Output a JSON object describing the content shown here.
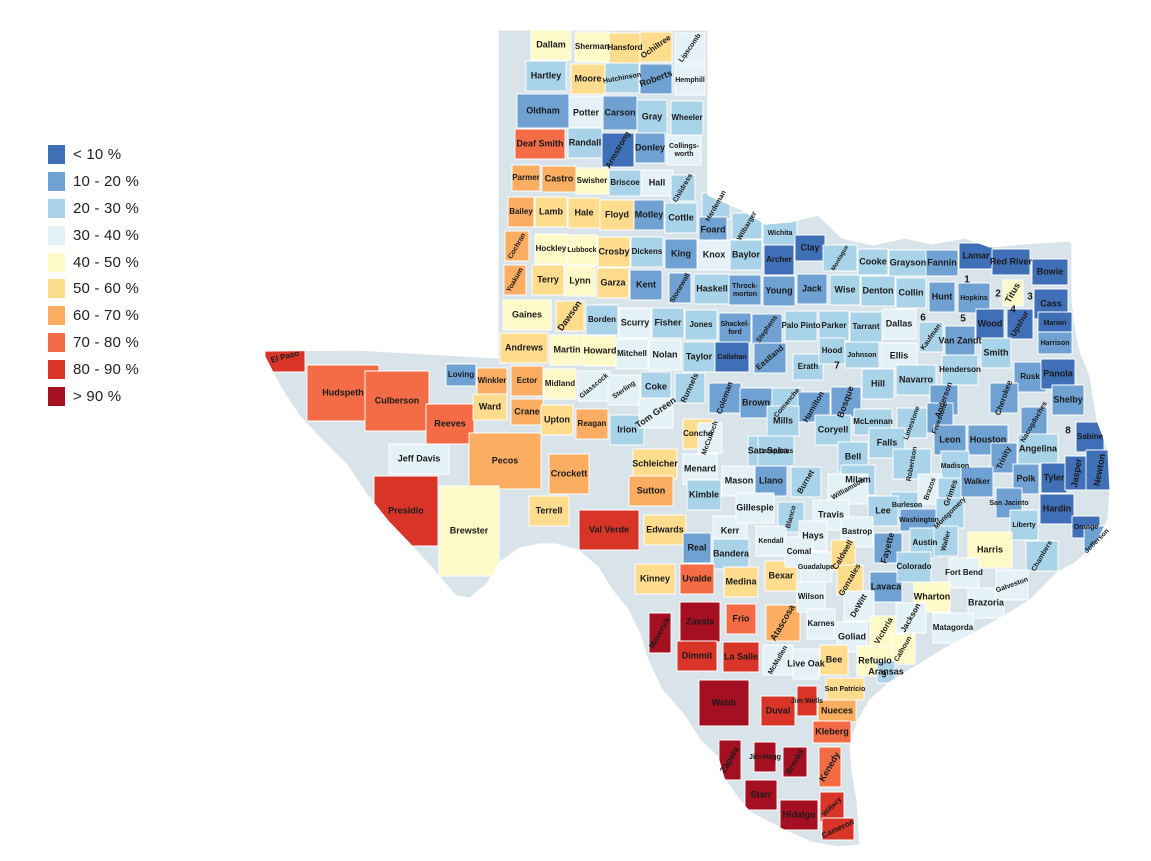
{
  "legend": {
    "items": [
      {
        "label": "< 10 %",
        "color": "#3f6fb6"
      },
      {
        "label": "10 - 20 %",
        "color": "#6fa2d3"
      },
      {
        "label": "20 - 30 %",
        "color": "#a9d3e8"
      },
      {
        "label": "30 - 40 %",
        "color": "#e4f2f7"
      },
      {
        "label": "40 - 50 %",
        "color": "#fdfac7"
      },
      {
        "label": "50 - 60 %",
        "color": "#fddc8d"
      },
      {
        "label": "60 - 70 %",
        "color": "#fbad61"
      },
      {
        "label": "70 - 80 %",
        "color": "#f36c45"
      },
      {
        "label": "80 - 90 %",
        "color": "#d83428"
      },
      {
        "label": "> 90 %",
        "color": "#a50f22"
      }
    ]
  },
  "counties": [
    {
      "name": "Dallam",
      "cls": 4
    },
    {
      "name": "Sherman",
      "cls": 4
    },
    {
      "name": "Hansford",
      "cls": 5
    },
    {
      "name": "Ochiltree",
      "cls": 5
    },
    {
      "name": "Lipscomb",
      "cls": 3
    },
    {
      "name": "Hartley",
      "cls": 2
    },
    {
      "name": "Moore",
      "cls": 5
    },
    {
      "name": "Hutchinson",
      "cls": 2
    },
    {
      "name": "Roberts",
      "cls": 1
    },
    {
      "name": "Hemphill",
      "cls": 3
    },
    {
      "name": "Oldham",
      "cls": 1
    },
    {
      "name": "Potter",
      "cls": 3
    },
    {
      "name": "Carson",
      "cls": 1
    },
    {
      "name": "Gray",
      "cls": 2
    },
    {
      "name": "Wheeler",
      "cls": 2
    },
    {
      "name": "Deaf Smith",
      "cls": 7
    },
    {
      "name": "Randall",
      "cls": 2
    },
    {
      "name": "Armstrong",
      "cls": 0
    },
    {
      "name": "Donley",
      "cls": 1
    },
    {
      "name": "Collings-worth",
      "cls": 3
    },
    {
      "name": "Parmer",
      "cls": 6
    },
    {
      "name": "Castro",
      "cls": 6
    },
    {
      "name": "Swisher",
      "cls": 4
    },
    {
      "name": "Briscoe",
      "cls": 2
    },
    {
      "name": "Hall",
      "cls": 3
    },
    {
      "name": "Childress",
      "cls": 2
    },
    {
      "name": "Bailey",
      "cls": 6
    },
    {
      "name": "Lamb",
      "cls": 5
    },
    {
      "name": "Hale",
      "cls": 5
    },
    {
      "name": "Floyd",
      "cls": 5
    },
    {
      "name": "Motley",
      "cls": 1
    },
    {
      "name": "Cottle",
      "cls": 2
    },
    {
      "name": "Hardeman",
      "cls": 2
    },
    {
      "name": "Foard",
      "cls": 1
    },
    {
      "name": "Wilbarger",
      "cls": 2
    },
    {
      "name": "Wichita",
      "cls": 2
    },
    {
      "name": "Clay",
      "cls": 0
    },
    {
      "name": "Montague",
      "cls": 2
    },
    {
      "name": "Cochran",
      "cls": 6
    },
    {
      "name": "Hockley",
      "cls": 4
    },
    {
      "name": "Lubbock",
      "cls": 4
    },
    {
      "name": "Crosby",
      "cls": 5
    },
    {
      "name": "Dickens",
      "cls": 2
    },
    {
      "name": "King",
      "cls": 1
    },
    {
      "name": "Knox",
      "cls": 3
    },
    {
      "name": "Baylor",
      "cls": 2
    },
    {
      "name": "Archer",
      "cls": 0
    },
    {
      "name": "Cooke",
      "cls": 2
    },
    {
      "name": "Grayson",
      "cls": 2
    },
    {
      "name": "Fannin",
      "cls": 1
    },
    {
      "name": "Lamar",
      "cls": 0
    },
    {
      "name": "Red River",
      "cls": 0
    },
    {
      "name": "Bowie",
      "cls": 0
    },
    {
      "name": "Yoakum",
      "cls": 6
    },
    {
      "name": "Terry",
      "cls": 5
    },
    {
      "name": "Lynn",
      "cls": 4
    },
    {
      "name": "Garza",
      "cls": 5
    },
    {
      "name": "Kent",
      "cls": 1
    },
    {
      "name": "Stonewall",
      "cls": 1
    },
    {
      "name": "Haskell",
      "cls": 2
    },
    {
      "name": "Throck-morton",
      "cls": 1
    },
    {
      "name": "Young",
      "cls": 1
    },
    {
      "name": "Jack",
      "cls": 1
    },
    {
      "name": "Wise",
      "cls": 2
    },
    {
      "name": "Denton",
      "cls": 2
    },
    {
      "name": "Collin",
      "cls": 2
    },
    {
      "name": "Hunt",
      "cls": 1
    },
    {
      "name": "Hopkins",
      "cls": 1
    },
    {
      "name": "Titus",
      "cls": 4
    },
    {
      "name": "Cass",
      "cls": 0
    },
    {
      "name": "Gaines",
      "cls": 4
    },
    {
      "name": "Dawson",
      "cls": 5
    },
    {
      "name": "Borden",
      "cls": 2
    },
    {
      "name": "Scurry",
      "cls": 3
    },
    {
      "name": "Fisher",
      "cls": 2
    },
    {
      "name": "Jones",
      "cls": 2
    },
    {
      "name": "Shackel-ford",
      "cls": 1
    },
    {
      "name": "Stephens",
      "cls": 1
    },
    {
      "name": "Palo Pinto",
      "cls": 2
    },
    {
      "name": "Parker",
      "cls": 2
    },
    {
      "name": "Tarrant",
      "cls": 2
    },
    {
      "name": "Dallas",
      "cls": 3
    },
    {
      "name": "Kaufman",
      "cls": 2
    },
    {
      "name": "Van Zandt",
      "cls": 1
    },
    {
      "name": "Wood",
      "cls": 0
    },
    {
      "name": "Upshur",
      "cls": 0
    },
    {
      "name": "Marion",
      "cls": 0
    },
    {
      "name": "Harrison",
      "cls": 1
    },
    {
      "name": "Andrews",
      "cls": 5
    },
    {
      "name": "Martin",
      "cls": 4
    },
    {
      "name": "Howard",
      "cls": 4
    },
    {
      "name": "Mitchell",
      "cls": 3
    },
    {
      "name": "Nolan",
      "cls": 3
    },
    {
      "name": "Taylor",
      "cls": 2
    },
    {
      "name": "Callahan",
      "cls": 0
    },
    {
      "name": "Eastland",
      "cls": 1
    },
    {
      "name": "Erath",
      "cls": 2
    },
    {
      "name": "Hood",
      "cls": 2
    },
    {
      "name": "Johnson",
      "cls": 2
    },
    {
      "name": "Ellis",
      "cls": 3
    },
    {
      "name": "Henderson",
      "cls": 2
    },
    {
      "name": "Smith",
      "cls": 2
    },
    {
      "name": "Rusk",
      "cls": 1
    },
    {
      "name": "Panola",
      "cls": 0
    },
    {
      "name": "El Paso",
      "cls": 8
    },
    {
      "name": "Hudspeth",
      "cls": 7
    },
    {
      "name": "Culberson",
      "cls": 7
    },
    {
      "name": "Loving",
      "cls": 1
    },
    {
      "name": "Winkler",
      "cls": 6
    },
    {
      "name": "Ector",
      "cls": 6
    },
    {
      "name": "Midland",
      "cls": 4
    },
    {
      "name": "Glasscock",
      "cls": 3
    },
    {
      "name": "Sterling",
      "cls": 3
    },
    {
      "name": "Coke",
      "cls": 2
    },
    {
      "name": "Runnels",
      "cls": 2
    },
    {
      "name": "Coleman",
      "cls": 1
    },
    {
      "name": "Brown",
      "cls": 1
    },
    {
      "name": "Comanche",
      "cls": 2
    },
    {
      "name": "Hamilton",
      "cls": 1
    },
    {
      "name": "Bosque",
      "cls": 1
    },
    {
      "name": "Hill",
      "cls": 2
    },
    {
      "name": "Navarro",
      "cls": 2
    },
    {
      "name": "Anderson",
      "cls": 1
    },
    {
      "name": "Cherokee",
      "cls": 1
    },
    {
      "name": "Nacogdoches",
      "cls": 1
    },
    {
      "name": "Shelby",
      "cls": 1
    },
    {
      "name": "Reeves",
      "cls": 7
    },
    {
      "name": "Ward",
      "cls": 5
    },
    {
      "name": "Crane",
      "cls": 6
    },
    {
      "name": "Upton",
      "cls": 5
    },
    {
      "name": "Reagan",
      "cls": 6
    },
    {
      "name": "Irion",
      "cls": 2
    },
    {
      "name": "Tom Green",
      "cls": 3
    },
    {
      "name": "Concho",
      "cls": 5
    },
    {
      "name": "McCulloch",
      "cls": 3
    },
    {
      "name": "Mills",
      "cls": 2
    },
    {
      "name": "Coryell",
      "cls": 2
    },
    {
      "name": "McLennan",
      "cls": 2
    },
    {
      "name": "Limestone",
      "cls": 2
    },
    {
      "name": "Freestone",
      "cls": 1
    },
    {
      "name": "Falls",
      "cls": 2
    },
    {
      "name": "Leon",
      "cls": 1
    },
    {
      "name": "Houston",
      "cls": 1
    },
    {
      "name": "Angelina",
      "cls": 2
    },
    {
      "name": "Sabine",
      "cls": 0
    },
    {
      "name": "Jeff Davis",
      "cls": 3
    },
    {
      "name": "Pecos",
      "cls": 6
    },
    {
      "name": "Crockett",
      "cls": 6
    },
    {
      "name": "Schleicher",
      "cls": 5
    },
    {
      "name": "Menard",
      "cls": 3
    },
    {
      "name": "San Saba",
      "cls": 2
    },
    {
      "name": "Lampasas",
      "cls": 2
    },
    {
      "name": "Bell",
      "cls": 2
    },
    {
      "name": "Robertson",
      "cls": 2
    },
    {
      "name": "Madison",
      "cls": 2
    },
    {
      "name": "Trinity",
      "cls": 1
    },
    {
      "name": "Polk",
      "cls": 1
    },
    {
      "name": "Tyler",
      "cls": 0
    },
    {
      "name": "Jasper",
      "cls": 0
    },
    {
      "name": "Newton",
      "cls": 0
    },
    {
      "name": "Sutton",
      "cls": 6
    },
    {
      "name": "Kimble",
      "cls": 2
    },
    {
      "name": "Mason",
      "cls": 3
    },
    {
      "name": "Llano",
      "cls": 1
    },
    {
      "name": "Burnet",
      "cls": 2
    },
    {
      "name": "Milam",
      "cls": 2
    },
    {
      "name": "Williamson",
      "cls": 3
    },
    {
      "name": "Burleson",
      "cls": 2
    },
    {
      "name": "Brazos",
      "cls": 3
    },
    {
      "name": "Grimes",
      "cls": 2
    },
    {
      "name": "Walker",
      "cls": 1
    },
    {
      "name": "San Jacinto",
      "cls": 1
    },
    {
      "name": "Hardin",
      "cls": 0
    },
    {
      "name": "Orange",
      "cls": 0
    },
    {
      "name": "Presidio",
      "cls": 8
    },
    {
      "name": "Brewster",
      "cls": 4
    },
    {
      "name": "Terrell",
      "cls": 5
    },
    {
      "name": "Val Verde",
      "cls": 8
    },
    {
      "name": "Edwards",
      "cls": 5
    },
    {
      "name": "Kerr",
      "cls": 3
    },
    {
      "name": "Gillespie",
      "cls": 3
    },
    {
      "name": "Blanco",
      "cls": 2
    },
    {
      "name": "Travis",
      "cls": 3
    },
    {
      "name": "Lee",
      "cls": 2
    },
    {
      "name": "Washington",
      "cls": 1
    },
    {
      "name": "Montgomery",
      "cls": 2
    },
    {
      "name": "Liberty",
      "cls": 2
    },
    {
      "name": "Jefferson",
      "cls": 1
    },
    {
      "name": "Real",
      "cls": 1
    },
    {
      "name": "Bandera",
      "cls": 2
    },
    {
      "name": "Kendall",
      "cls": 3
    },
    {
      "name": "Hays",
      "cls": 3
    },
    {
      "name": "Bastrop",
      "cls": 3
    },
    {
      "name": "Fayette",
      "cls": 1
    },
    {
      "name": "Austin",
      "cls": 2
    },
    {
      "name": "Waller",
      "cls": 2
    },
    {
      "name": "Harris",
      "cls": 4
    },
    {
      "name": "Chambers",
      "cls": 2
    },
    {
      "name": "Kinney",
      "cls": 5
    },
    {
      "name": "Uvalde",
      "cls": 7
    },
    {
      "name": "Medina",
      "cls": 5
    },
    {
      "name": "Bexar",
      "cls": 5
    },
    {
      "name": "Comal",
      "cls": 3
    },
    {
      "name": "Guadalupe",
      "cls": 3
    },
    {
      "name": "Caldwell",
      "cls": 5
    },
    {
      "name": "Gonzales",
      "cls": 5
    },
    {
      "name": "Lavaca",
      "cls": 1
    },
    {
      "name": "Colorado",
      "cls": 2
    },
    {
      "name": "Fort Bend",
      "cls": 3
    },
    {
      "name": "Wharton",
      "cls": 4
    },
    {
      "name": "Brazoria",
      "cls": 3
    },
    {
      "name": "Galveston",
      "cls": 3
    },
    {
      "name": "Maverick",
      "cls": 9
    },
    {
      "name": "Zavala",
      "cls": 9
    },
    {
      "name": "Frio",
      "cls": 7
    },
    {
      "name": "Atascosa",
      "cls": 6
    },
    {
      "name": "Wilson",
      "cls": 3
    },
    {
      "name": "Karnes",
      "cls": 3
    },
    {
      "name": "DeWitt",
      "cls": 3
    },
    {
      "name": "Victoria",
      "cls": 4
    },
    {
      "name": "Jackson",
      "cls": 3
    },
    {
      "name": "Matagorda",
      "cls": 3
    },
    {
      "name": "Goliad",
      "cls": 3
    },
    {
      "name": "Calhoun",
      "cls": 4
    },
    {
      "name": "Dimmit",
      "cls": 8
    },
    {
      "name": "La Salle",
      "cls": 8
    },
    {
      "name": "McMullen",
      "cls": 3
    },
    {
      "name": "Live Oak",
      "cls": 3
    },
    {
      "name": "Bee",
      "cls": 5
    },
    {
      "name": "Refugio",
      "cls": 4
    },
    {
      "name": "Aransas",
      "cls": 2
    },
    {
      "name": "San Patricio",
      "cls": 5
    },
    {
      "name": "Webb",
      "cls": 9
    },
    {
      "name": "Duval",
      "cls": 8
    },
    {
      "name": "Jim Wells",
      "cls": 8
    },
    {
      "name": "Nueces",
      "cls": 6
    },
    {
      "name": "Kleberg",
      "cls": 7
    },
    {
      "name": "Zapata",
      "cls": 9
    },
    {
      "name": "Jim Hogg",
      "cls": 9
    },
    {
      "name": "Brooks",
      "cls": 9
    },
    {
      "name": "Kenedy",
      "cls": 7
    },
    {
      "name": "Starr",
      "cls": 9
    },
    {
      "name": "Hidalgo",
      "cls": 9
    },
    {
      "name": "Willacy",
      "cls": 8
    },
    {
      "name": "Cameron",
      "cls": 8
    },
    {
      "name": "1",
      "cls": 0
    },
    {
      "name": "2",
      "cls": 0
    },
    {
      "name": "3",
      "cls": 0
    },
    {
      "name": "4",
      "cls": 4
    },
    {
      "name": "5",
      "cls": 0
    },
    {
      "name": "6",
      "cls": 2
    },
    {
      "name": "7",
      "cls": 2
    },
    {
      "name": "8",
      "cls": 0
    },
    {
      "name": "9",
      "cls": 2
    }
  ]
}
